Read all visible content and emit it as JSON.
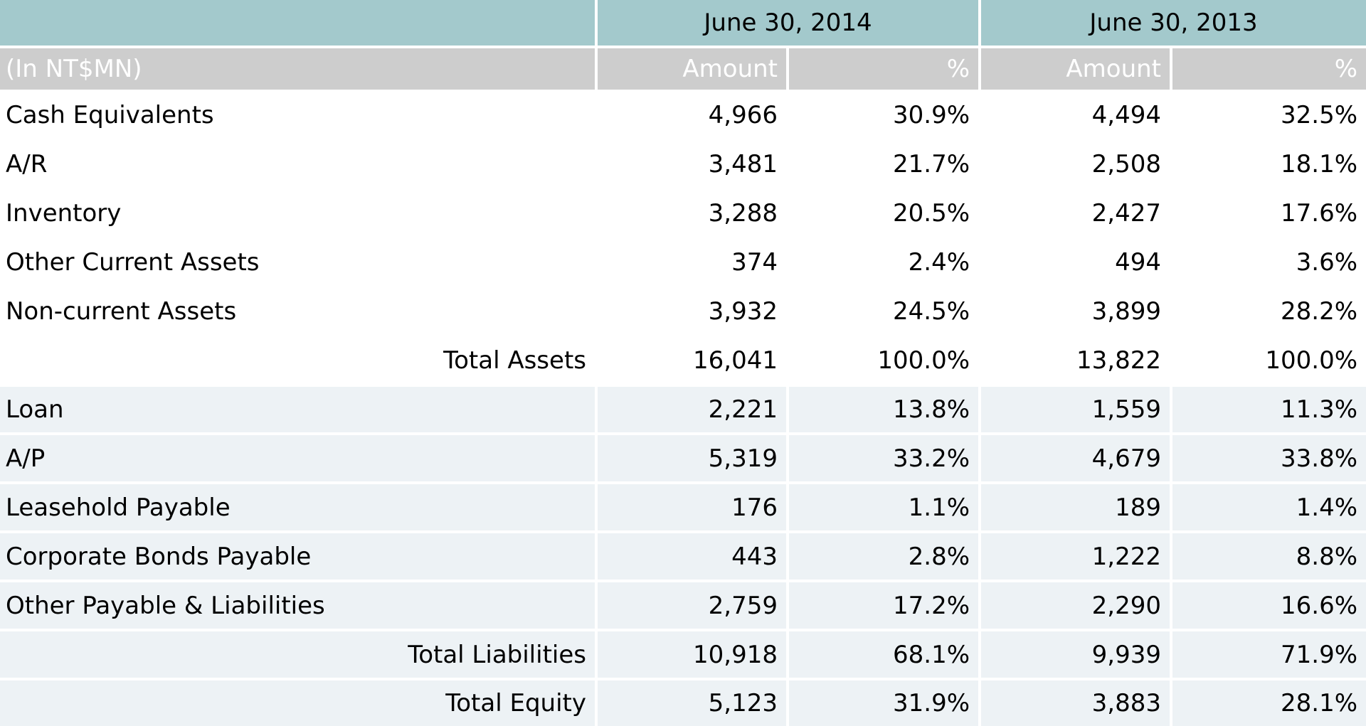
{
  "colors": {
    "group_header_bg": "#a3c9cc",
    "sub_header_bg": "#cdcdcd",
    "sub_header_text": "#ffffff",
    "liability_row_bg": "#edf2f5",
    "asset_row_bg": "#ffffff",
    "grid_line": "#ffffff",
    "body_text": "#000000"
  },
  "table": {
    "unit_label": "(In NT$MN)",
    "column_groups": [
      {
        "label": "June 30, 2014"
      },
      {
        "label": "June 30, 2013"
      }
    ],
    "sub_headers": [
      "Amount",
      "%",
      "Amount",
      "%"
    ],
    "rows": [
      {
        "label": "Cash Equivalents",
        "section": "assets",
        "is_total": false,
        "values": [
          "4,966",
          "30.9%",
          "4,494",
          "32.5%"
        ]
      },
      {
        "label": "A/R",
        "section": "assets",
        "is_total": false,
        "values": [
          "3,481",
          "21.7%",
          "2,508",
          "18.1%"
        ]
      },
      {
        "label": "Inventory",
        "section": "assets",
        "is_total": false,
        "values": [
          "3,288",
          "20.5%",
          "2,427",
          "17.6%"
        ]
      },
      {
        "label": "Other Current Assets",
        "section": "assets",
        "is_total": false,
        "values": [
          "374",
          "2.4%",
          "494",
          "3.6%"
        ]
      },
      {
        "label": "Non-current Assets",
        "section": "assets",
        "is_total": false,
        "values": [
          "3,932",
          "24.5%",
          "3,899",
          "28.2%"
        ]
      },
      {
        "label": "Total Assets",
        "section": "assets",
        "is_total": true,
        "values": [
          "16,041",
          "100.0%",
          "13,822",
          "100.0%"
        ]
      },
      {
        "label": "Loan",
        "section": "liabilities",
        "is_total": false,
        "values": [
          "2,221",
          "13.8%",
          "1,559",
          "11.3%"
        ]
      },
      {
        "label": "A/P",
        "section": "liabilities",
        "is_total": false,
        "values": [
          "5,319",
          "33.2%",
          "4,679",
          "33.8%"
        ]
      },
      {
        "label": "Leasehold Payable",
        "section": "liabilities",
        "is_total": false,
        "values": [
          "176",
          "1.1%",
          "189",
          "1.4%"
        ]
      },
      {
        "label": "Corporate Bonds Payable",
        "section": "liabilities",
        "is_total": false,
        "values": [
          "443",
          "2.8%",
          "1,222",
          "8.8%"
        ]
      },
      {
        "label": "Other Payable & Liabilities",
        "section": "liabilities",
        "is_total": false,
        "values": [
          "2,759",
          "17.2%",
          "2,290",
          "16.6%"
        ]
      },
      {
        "label": "Total Liabilities",
        "section": "liabilities",
        "is_total": true,
        "values": [
          "10,918",
          "68.1%",
          "9,939",
          "71.9%"
        ]
      },
      {
        "label": "Total Equity",
        "section": "liabilities",
        "is_total": true,
        "values": [
          "5,123",
          "31.9%",
          "3,883",
          "28.1%"
        ]
      }
    ]
  },
  "chart_data": {
    "type": "table",
    "title": "",
    "unit": "(In NT$MN)",
    "column_groups": [
      "June 30, 2014",
      "June 30, 2013"
    ],
    "columns": [
      "Amount 2014",
      "% 2014",
      "Amount 2013",
      "% 2013"
    ],
    "rows": [
      {
        "label": "Cash Equivalents",
        "amount_2014": 4966,
        "pct_2014": 30.9,
        "amount_2013": 4494,
        "pct_2013": 32.5
      },
      {
        "label": "A/R",
        "amount_2014": 3481,
        "pct_2014": 21.7,
        "amount_2013": 2508,
        "pct_2013": 18.1
      },
      {
        "label": "Inventory",
        "amount_2014": 3288,
        "pct_2014": 20.5,
        "amount_2013": 2427,
        "pct_2013": 17.6
      },
      {
        "label": "Other Current Assets",
        "amount_2014": 374,
        "pct_2014": 2.4,
        "amount_2013": 494,
        "pct_2013": 3.6
      },
      {
        "label": "Non-current Assets",
        "amount_2014": 3932,
        "pct_2014": 24.5,
        "amount_2013": 3899,
        "pct_2013": 28.2
      },
      {
        "label": "Total Assets",
        "amount_2014": 16041,
        "pct_2014": 100.0,
        "amount_2013": 13822,
        "pct_2013": 100.0
      },
      {
        "label": "Loan",
        "amount_2014": 2221,
        "pct_2014": 13.8,
        "amount_2013": 1559,
        "pct_2013": 11.3
      },
      {
        "label": "A/P",
        "amount_2014": 5319,
        "pct_2014": 33.2,
        "amount_2013": 4679,
        "pct_2013": 33.8
      },
      {
        "label": "Leasehold Payable",
        "amount_2014": 176,
        "pct_2014": 1.1,
        "amount_2013": 189,
        "pct_2013": 1.4
      },
      {
        "label": "Corporate Bonds Payable",
        "amount_2014": 443,
        "pct_2014": 2.8,
        "amount_2013": 1222,
        "pct_2013": 8.8
      },
      {
        "label": "Other Payable & Liabilities",
        "amount_2014": 2759,
        "pct_2014": 17.2,
        "amount_2013": 2290,
        "pct_2013": 16.6
      },
      {
        "label": "Total Liabilities",
        "amount_2014": 10918,
        "pct_2014": 68.1,
        "amount_2013": 9939,
        "pct_2013": 71.9
      },
      {
        "label": "Total Equity",
        "amount_2014": 5123,
        "pct_2014": 31.9,
        "amount_2013": 3883,
        "pct_2013": 28.1
      }
    ]
  }
}
